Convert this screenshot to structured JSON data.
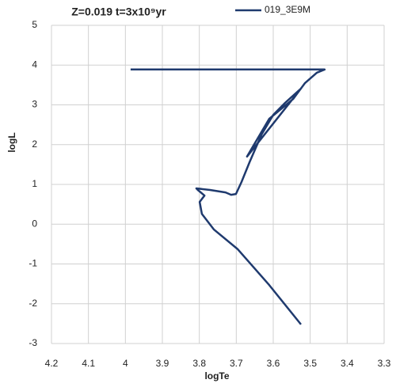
{
  "chart_data": {
    "type": "line",
    "title": "Z=0.019 t=3x10⁹yr",
    "x_label": "logTe",
    "y_label": "logL",
    "xlim": [
      4.2,
      3.3
    ],
    "xticks": [
      4.2,
      4.1,
      4,
      3.9,
      3.8,
      3.7,
      3.6,
      3.5,
      3.4,
      3.3
    ],
    "ylim": [
      -3,
      5
    ],
    "yticks": [
      -3,
      -2,
      -1,
      0,
      1,
      2,
      3,
      4,
      5
    ],
    "grid": true,
    "legend": "top-right",
    "series": [
      {
        "name": "019_3E9M",
        "color": "#1f3a6e",
        "x": [
          3.525,
          3.611,
          3.696,
          3.761,
          3.793,
          3.799,
          3.786,
          3.804,
          3.808,
          3.771,
          3.729,
          3.714,
          3.701,
          3.686,
          3.664,
          3.632,
          3.6,
          3.568,
          3.525,
          3.671,
          3.611,
          3.546,
          3.514,
          3.482,
          3.461,
          3.986
        ],
        "values": [
          -2.52,
          -1.53,
          -0.63,
          -0.13,
          0.26,
          0.56,
          0.72,
          0.86,
          0.9,
          0.86,
          0.8,
          0.74,
          0.76,
          1.06,
          1.56,
          2.25,
          2.75,
          3.05,
          3.41,
          1.7,
          2.65,
          3.15,
          3.55,
          3.81,
          3.89,
          3.89
        ]
      }
    ]
  }
}
